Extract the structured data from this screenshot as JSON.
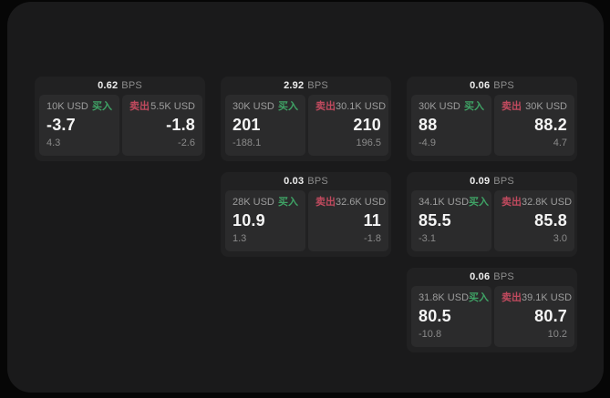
{
  "colors": {
    "buy_accent": "#3fa265",
    "sell_accent": "#c04a5e",
    "panel_bg": "#1a1a1b",
    "card_bg": "#212122",
    "subcard_bg": "#2b2b2c"
  },
  "cards": [
    {
      "bps_value": "0.62",
      "bps_unit": "BPS",
      "buy": {
        "amount": "10K USD",
        "side": "买入",
        "price": "-3.7",
        "delta": "4.3"
      },
      "sell": {
        "side": "卖出",
        "amount": "5.5K USD",
        "price": "-1.8",
        "delta": "-2.6"
      }
    },
    {
      "bps_value": "2.92",
      "bps_unit": "BPS",
      "buy": {
        "amount": "30K USD",
        "side": "买入",
        "price": "201",
        "delta": "-188.1"
      },
      "sell": {
        "side": "卖出",
        "amount": "30.1K USD",
        "price": "210",
        "delta": "196.5"
      }
    },
    {
      "bps_value": "0.06",
      "bps_unit": "BPS",
      "buy": {
        "amount": "30K USD",
        "side": "买入",
        "price": "88",
        "delta": "-4.9"
      },
      "sell": {
        "side": "卖出",
        "amount": "30K USD",
        "price": "88.2",
        "delta": "4.7"
      }
    },
    {
      "bps_value": "0.03",
      "bps_unit": "BPS",
      "buy": {
        "amount": "28K USD",
        "side": "买入",
        "price": "10.9",
        "delta": "1.3"
      },
      "sell": {
        "side": "卖出",
        "amount": "32.6K USD",
        "price": "11",
        "delta": "-1.8"
      }
    },
    {
      "bps_value": "0.09",
      "bps_unit": "BPS",
      "buy": {
        "amount": "34.1K USD",
        "side": "买入",
        "price": "85.5",
        "delta": "-3.1"
      },
      "sell": {
        "side": "卖出",
        "amount": "32.8K USD",
        "price": "85.8",
        "delta": "3.0"
      }
    },
    {
      "bps_value": "0.06",
      "bps_unit": "BPS",
      "buy": {
        "amount": "31.8K USD",
        "side": "买入",
        "price": "80.5",
        "delta": "-10.8"
      },
      "sell": {
        "side": "卖出",
        "amount": "39.1K USD",
        "price": "80.7",
        "delta": "10.2"
      }
    }
  ]
}
